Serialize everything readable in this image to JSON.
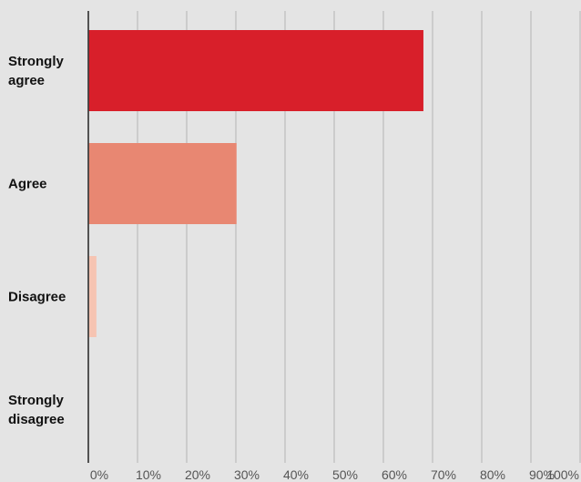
{
  "chart_data": {
    "type": "bar",
    "orientation": "horizontal",
    "categories": [
      {
        "lines": [
          "Strongly",
          "agree"
        ]
      },
      {
        "lines": [
          "Agree"
        ]
      },
      {
        "lines": [
          "Disagree"
        ]
      },
      {
        "lines": [
          "Strongly",
          "disagree"
        ]
      }
    ],
    "values": [
      68,
      30,
      1.5,
      0
    ],
    "bar_colors": [
      "#d81f2a",
      "#e88772",
      "#f6c4b2",
      "#f6c4b2"
    ],
    "xlim": [
      0,
      100
    ],
    "x_ticks": [
      0,
      10,
      20,
      30,
      40,
      50,
      60,
      70,
      80,
      90,
      100
    ],
    "x_tick_labels": [
      "0%",
      "10%",
      "20%",
      "30%",
      "40%",
      "50%",
      "60%",
      "70%",
      "80%",
      "90%",
      "100%"
    ],
    "grid": true,
    "grid_color": "#b5b5b5",
    "axis_color": "#222222",
    "background": "#e4e4e4",
    "title": "",
    "xlabel": "",
    "ylabel": ""
  }
}
